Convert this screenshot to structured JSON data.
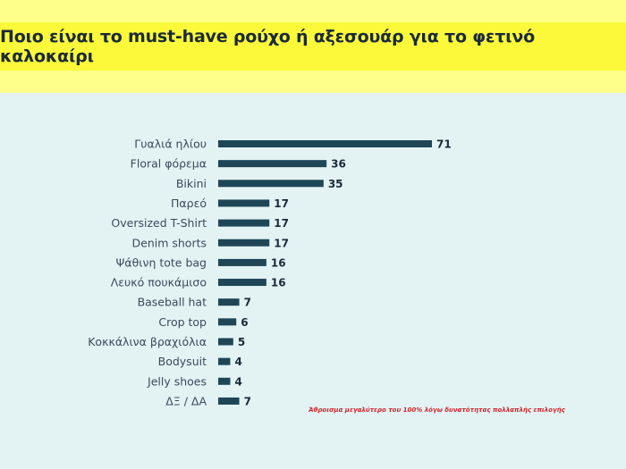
{
  "title": "Ποιο είναι το must-have ρούχο ή αξεσουάρ για το φετινό καλοκαίρι",
  "note": "Άθροισμα μεγαλύτερο του 100% λόγω δυνατότητας πολλαπλής επιλογής",
  "colors": {
    "bar": "#1f4656",
    "banner": "#fbf93a",
    "note": "#d3252a"
  },
  "chart_data": {
    "type": "bar",
    "orientation": "horizontal",
    "title": "Ποιο είναι το must-have ρούχο ή αξεσουάρ για το φετινό καλοκαίρι",
    "categories": [
      "Γυαλιά ηλίου",
      "Floral φόρεμα",
      "Bikini",
      "Παρεό",
      "Oversized T-Shirt",
      "Denim shorts",
      "Ψάθινη tote bag",
      "Λευκό πουκάμισο",
      "Baseball hat",
      "Crop top",
      "Κοκκάλινα βραχιόλια",
      "Bodysuit",
      "Jelly shoes",
      "ΔΞ / ΔΑ"
    ],
    "values": [
      71,
      36,
      35,
      17,
      17,
      17,
      16,
      16,
      7,
      6,
      5,
      4,
      4,
      7
    ],
    "xlim": [
      0,
      71
    ],
    "grid": false,
    "legend": "none"
  }
}
